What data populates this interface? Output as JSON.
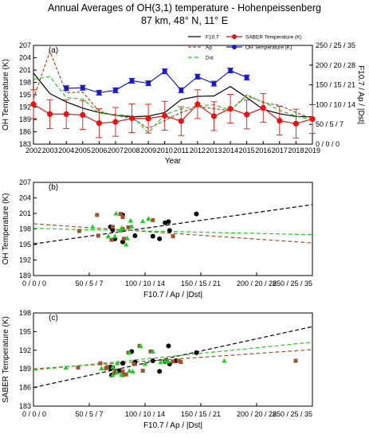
{
  "title": {
    "line1": "Annual Averages of OH(3,1) temperature - Hohenpeissenberg",
    "line2": "87 km, 48° N, 11° E"
  },
  "colors": {
    "saber": "#ee1111",
    "oh": "#1a1acc",
    "f107": "#000000",
    "ap": "#a0522d",
    "dst": "#22cc22"
  },
  "chart_data": [
    {
      "type": "line",
      "panel_label": "(a)",
      "xlabel": "Year",
      "ylabel": "OH Temperature (K)",
      "ylabel_right": "F10.7 / Ap / |Dst|",
      "x": [
        2002,
        2003,
        2004,
        2005,
        2006,
        2007,
        2008,
        2009,
        2010,
        2011,
        2012,
        2013,
        2014,
        2015,
        2016,
        2017,
        2018,
        2019
      ],
      "ylim": [
        183,
        207
      ],
      "yticks": [
        "183",
        "186",
        "189",
        "192",
        "195",
        "198",
        "201",
        "204",
        "207"
      ],
      "yright_ticks": [
        "0 / 0 / 0",
        "50 / 5 / 7",
        "100 / 10 / 14",
        "150 / 15 / 21",
        "200 / 20 / 28",
        "250 / 25 / 35"
      ],
      "legend": {
        "f107": "F10.7",
        "ap": "Ap",
        "dst": "Dst",
        "saber": "SABER Temperature (K)",
        "oh": "OH Temperature (K)"
      },
      "series": [
        {
          "name": "SABER Temperature (K)",
          "key": "saber",
          "axis": "left",
          "x": [
            2002,
            2003,
            2004,
            2005,
            2006,
            2007,
            2008,
            2009,
            2010,
            2011,
            2012,
            2013,
            2014,
            2015,
            2016,
            2017,
            2018,
            2019
          ],
          "values": [
            192.7,
            190.3,
            190.3,
            190.1,
            188.1,
            188.4,
            189.3,
            189.2,
            189.9,
            188.6,
            192.7,
            189.8,
            191.6,
            190.2,
            191.8,
            188.7,
            188.0,
            189.1
          ],
          "errors": [
            3.5,
            3.5,
            3.5,
            3.5,
            3.5,
            3.5,
            3.5,
            3.5,
            3.5,
            3.5,
            3.5,
            3.5,
            3.5,
            3.5,
            3.5,
            3.5,
            3.5,
            3.5
          ]
        },
        {
          "name": "OH Temperature (K)",
          "key": "oh",
          "axis": "left",
          "x": [
            2004,
            2005,
            2006,
            2007,
            2008,
            2009,
            2010,
            2011,
            2012,
            2013,
            2014,
            2015
          ],
          "values": [
            196.6,
            196.7,
            195.5,
            196.1,
            198.4,
            197.8,
            200.7,
            196.1,
            199.4,
            197.7,
            200.9,
            199.2
          ],
          "errors": [
            0.6,
            0.6,
            0.6,
            0.6,
            0.6,
            0.6,
            0.6,
            0.6,
            0.6,
            0.6,
            0.6,
            0.6
          ]
        },
        {
          "name": "F10.7",
          "key": "f107",
          "axis": "right",
          "dash": "",
          "x": [
            2002,
            2003,
            2004,
            2005,
            2006,
            2007,
            2008,
            2009,
            2010,
            2011,
            2012,
            2013,
            2014,
            2015,
            2016,
            2017,
            2018,
            2019
          ],
          "values": [
            180,
            128,
            107,
            91,
            80,
            73,
            69,
            71,
            80,
            113,
            121,
            122,
            146,
            118,
            88,
            77,
            70,
            69
          ]
        },
        {
          "name": "Ap",
          "key": "ap",
          "axis": "right",
          "dash": "4,2",
          "x": [
            2002,
            2003,
            2004,
            2005,
            2006,
            2007,
            2008,
            2009,
            2010,
            2011,
            2012,
            2013,
            2014,
            2015,
            2016,
            2017,
            2018,
            2019
          ],
          "values": [
            11.5,
            23.5,
            13,
            13.2,
            8.3,
            7.3,
            6.6,
            4,
            6,
            8,
            9.5,
            9,
            8.5,
            12.5,
            10.5,
            9.8,
            8,
            6.5
          ]
        },
        {
          "name": "Dst",
          "key": "dst",
          "axis": "right",
          "dash": "5,3",
          "x": [
            2002,
            2003,
            2004,
            2005,
            2006,
            2007,
            2008,
            2009,
            2010,
            2011,
            2012,
            2013,
            2014,
            2015,
            2016,
            2017,
            2018,
            2019
          ],
          "values": [
            23,
            24,
            16.5,
            16,
            11,
            10.5,
            10,
            4,
            10.5,
            12.5,
            13.5,
            14,
            12,
            17,
            15,
            12,
            10,
            8.5
          ]
        }
      ]
    },
    {
      "type": "scatter",
      "panel_label": "(b)",
      "xlabel": "F10.7 / Ap / |Dst|",
      "ylabel": "OH Temperature (K)",
      "xlim": [
        0,
        250
      ],
      "ylim": [
        189,
        207
      ],
      "yticks": [
        "189",
        "192",
        "195",
        "198",
        "201",
        "204",
        "207"
      ],
      "xticks": [
        "0 / 0 / 0",
        "50 / 5 / 7",
        "100 / 10 / 14",
        "150 / 15 / 21",
        "200 / 20 / 28",
        "250 / 25 / 35"
      ],
      "series": [
        {
          "key": "f107",
          "marker": "circle",
          "x": [
            107,
            91,
            80,
            73,
            69,
            71,
            80,
            113,
            121,
            122,
            146,
            118
          ],
          "y": [
            196.6,
            196.7,
            195.5,
            196.1,
            198.4,
            197.8,
            200.7,
            196.1,
            199.4,
            197.7,
            200.9,
            199.2
          ],
          "fit": [
            195.1,
            202.7
          ]
        },
        {
          "key": "ap",
          "marker": "square",
          "x": [
            57,
            58,
            41,
            80,
            71,
            70,
            78,
            85,
            81,
            80,
            125,
            107
          ],
          "y": [
            200.7,
            196.7,
            197.6,
            200.3,
            198.4,
            195.9,
            200.9,
            198.3,
            196.1,
            198.0,
            196.6,
            199.7
          ],
          "fit": [
            199.0,
            195.3
          ]
        },
        {
          "key": "dst",
          "marker": "triangle",
          "x": [
            83,
            84,
            67,
            98,
            74,
            73,
            79,
            53,
            78,
            88,
            103,
            87
          ],
          "y": [
            195.0,
            196.2,
            196.6,
            199.5,
            201.0,
            196.6,
            198.2,
            198.4,
            197.7,
            198.5,
            200.0,
            199.6
          ],
          "fit": [
            198.1,
            196.9
          ]
        }
      ]
    },
    {
      "type": "scatter",
      "panel_label": "(c)",
      "xlabel": "F10.7 / Ap / |Dst|",
      "ylabel": "SABER Temperature (K)",
      "xlim": [
        0,
        250
      ],
      "ylim": [
        183,
        198
      ],
      "yticks": [
        "183",
        "186",
        "189",
        "192",
        "195",
        "198"
      ],
      "xticks": [
        "0 / 0 / 0",
        "50 / 5 / 7",
        "100 / 10 / 14",
        "150 / 15 / 21",
        "200 / 20 / 28",
        "250 / 25 / 35"
      ],
      "series": [
        {
          "key": "f107",
          "marker": "circle",
          "x": [
            128,
            107,
            91,
            80,
            73,
            69,
            71,
            80,
            113,
            121,
            122,
            146,
            118,
            88,
            77,
            70,
            69
          ],
          "y": [
            190.3,
            190.3,
            190.1,
            188.1,
            188.4,
            189.3,
            189.2,
            189.9,
            188.6,
            192.7,
            189.8,
            191.6,
            190.2,
            191.8,
            188.7,
            188.0,
            189.1
          ],
          "fit": [
            186.0,
            195.8
          ]
        },
        {
          "key": "ap",
          "marker": "square",
          "x": [
            235,
            130,
            132,
            83,
            73,
            66,
            40,
            60,
            80,
            95,
            90,
            85,
            125,
            105,
            98,
            80,
            65
          ],
          "y": [
            190.3,
            190.3,
            190.1,
            188.1,
            188.4,
            189.3,
            189.2,
            189.9,
            188.6,
            192.7,
            189.8,
            191.6,
            190.2,
            191.8,
            188.7,
            188.0,
            189.1
          ],
          "fit": [
            189.0,
            192.1
          ]
        },
        {
          "key": "dst",
          "marker": "triangle",
          "x": [
            171,
            118,
            114,
            79,
            75,
            71,
            29,
            75,
            89,
            96,
            100,
            86,
            121,
            107,
            86,
            71,
            61
          ],
          "y": [
            190.3,
            190.3,
            190.1,
            188.1,
            188.4,
            189.3,
            189.2,
            189.9,
            188.6,
            192.7,
            189.8,
            191.6,
            190.2,
            191.8,
            188.7,
            188.0,
            189.1
          ],
          "fit": [
            188.8,
            193.3
          ]
        }
      ]
    }
  ]
}
